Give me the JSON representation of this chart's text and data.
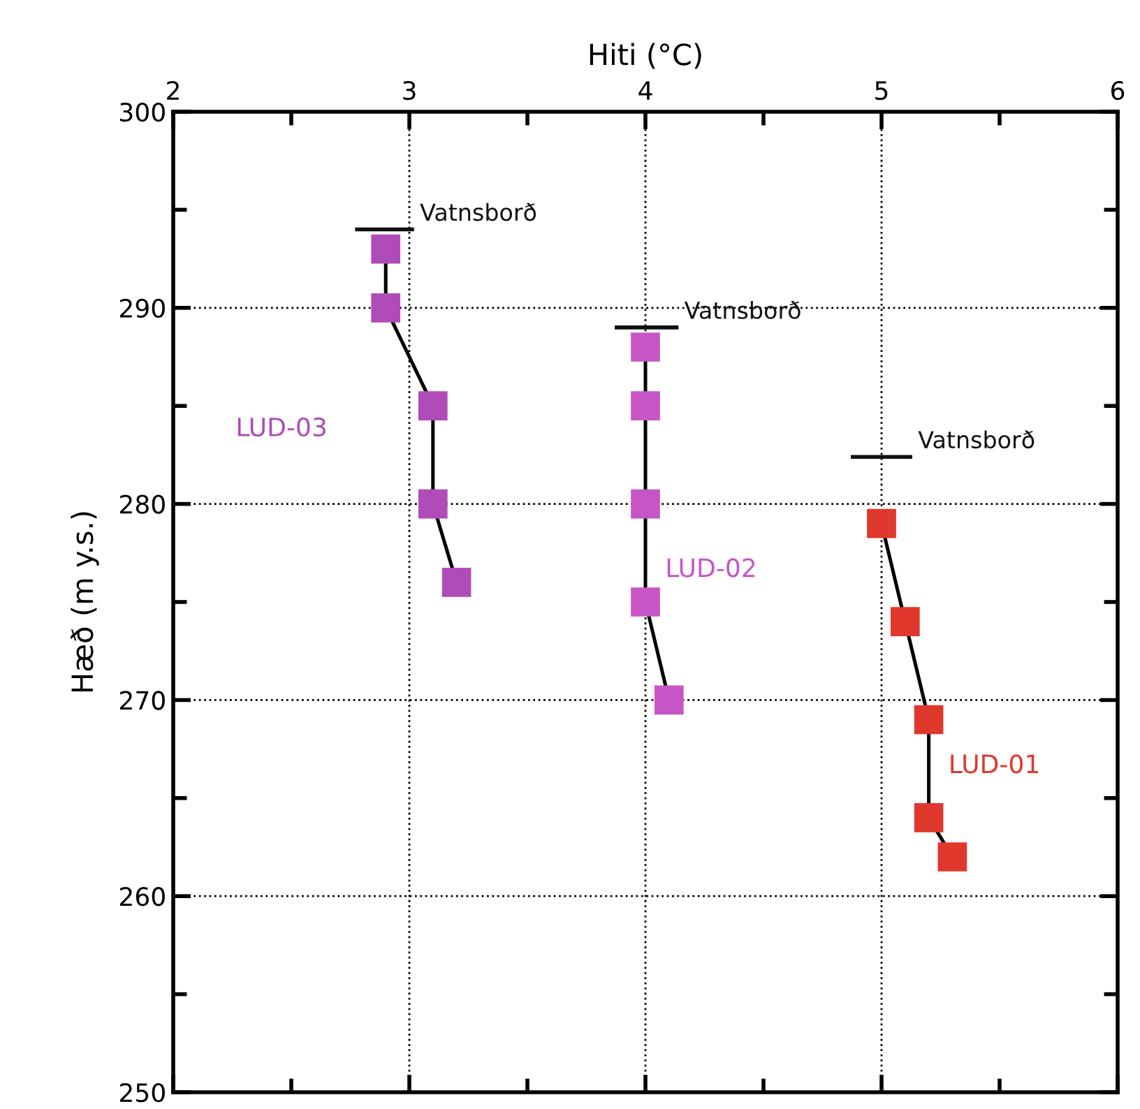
{
  "chart_data": {
    "type": "line",
    "xlabel": "Hiti (°C)",
    "ylabel": "Hæð (m y.s.)",
    "xlim": [
      2,
      6
    ],
    "ylim": [
      250,
      300
    ],
    "xticks": [
      2,
      {
        "value": 2.5,
        "label": null
      },
      3,
      {
        "value": 3.5,
        "label": null
      },
      4,
      {
        "value": 4.5,
        "label": null
      },
      5,
      {
        "value": 5.5,
        "label": null
      },
      6
    ],
    "yticks": [
      250,
      {
        "value": 255,
        "label": null
      },
      260,
      {
        "value": 265,
        "label": null
      },
      270,
      {
        "value": 275,
        "label": null
      },
      280,
      {
        "value": 285,
        "label": null
      },
      290,
      {
        "value": 295,
        "label": null
      },
      300
    ],
    "grid": true,
    "marker": "square",
    "line_style": "solid",
    "series": [
      {
        "name": "LUD-03",
        "color": "#b04cb8",
        "x": [
          2.9,
          2.9,
          3.1,
          3.1,
          3.2
        ],
        "values": [
          293,
          290,
          285,
          280,
          276
        ]
      },
      {
        "name": "LUD-02",
        "color": "#c656c6",
        "x": [
          4.0,
          4.0,
          4.0,
          4.0,
          4.1
        ],
        "values": [
          288,
          285,
          280,
          275,
          270
        ]
      },
      {
        "name": "LUD-01",
        "color": "#e0382c",
        "x": [
          5.0,
          5.1,
          5.2,
          5.2,
          5.3
        ],
        "values": [
          279,
          274,
          269,
          264,
          262
        ]
      },
      {
        "name": "Vatnsborð",
        "color": "#111111",
        "marker": "none",
        "x": [
          2.77,
          3.02
        ],
        "values": [
          294,
          294
        ]
      },
      {
        "name": "Vatnsborð",
        "color": "#111111",
        "marker": "none",
        "x": [
          3.87,
          4.14
        ],
        "values": [
          289,
          289
        ]
      },
      {
        "name": "Vatnsborð",
        "color": "#111111",
        "marker": "none",
        "x": [
          4.87,
          5.13
        ],
        "values": [
          282.4,
          282.4
        ]
      }
    ]
  }
}
